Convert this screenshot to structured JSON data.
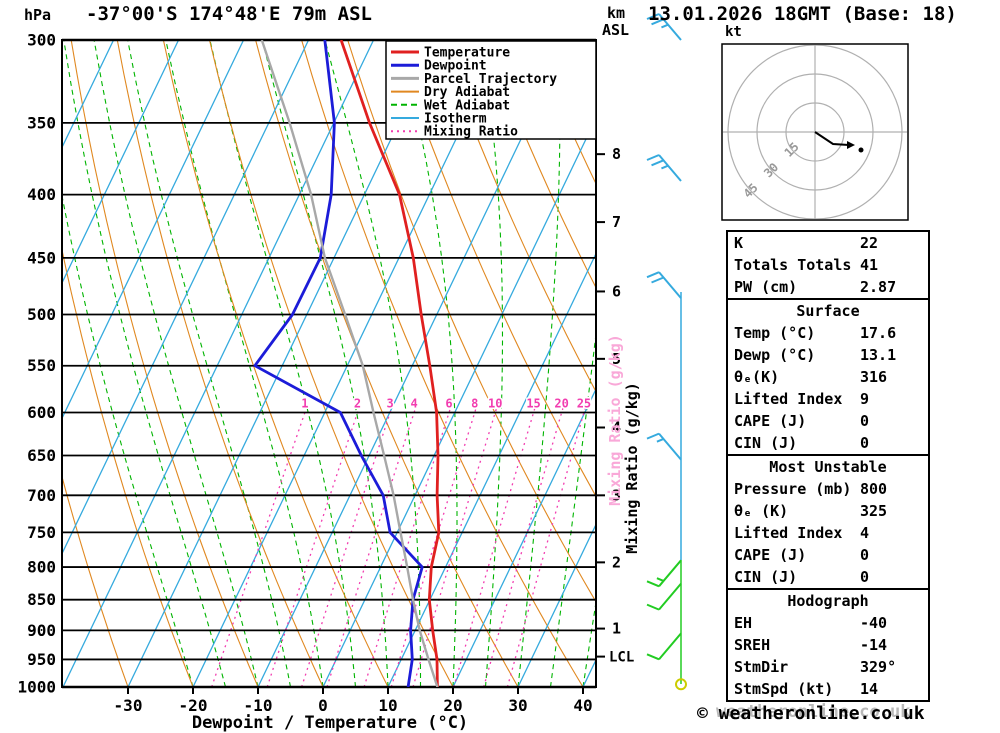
{
  "header": {
    "pressure_unit": "hPa",
    "station_title": "-37°00'S 174°48'E 79m ASL",
    "datetime_title": "13.01.2026 18GMT (Base: 18)",
    "altitude_axis_line1": "km",
    "altitude_axis_line2": "ASL"
  },
  "labels": {
    "x_axis": "Dewpoint / Temperature (°C)",
    "mixing_ratio_axis": "Mixing Ratio (g/kg)",
    "lcl": "LCL"
  },
  "legend": [
    {
      "name": "Temperature",
      "color": "#e02020",
      "dash": "solid",
      "width": 2.8
    },
    {
      "name": "Dewpoint",
      "color": "#1c1cd8",
      "dash": "solid",
      "width": 2.8
    },
    {
      "name": "Parcel Trajectory",
      "color": "#a8a8a8",
      "dash": "solid",
      "width": 2.4
    },
    {
      "name": "Dry Adiabat",
      "color": "#e08820",
      "dash": "solid",
      "width": 1.2
    },
    {
      "name": "Wet Adiabat",
      "color": "#00b400",
      "dash": "dashed",
      "width": 1.2
    },
    {
      "name": "Isotherm",
      "color": "#35aade",
      "dash": "solid",
      "width": 1.2
    },
    {
      "name": "Mixing Ratio",
      "color": "#f23db0",
      "dash": "dotted",
      "width": 1.4
    }
  ],
  "chart_data": {
    "type": "line",
    "title": "Skew-T log-P sounding 13.01.2026 18GMT (Base: 18)",
    "xlabel": "Dewpoint / Temperature (°C)",
    "ylabel": "hPa",
    "x_ticks_c": [
      -30,
      -20,
      -10,
      0,
      10,
      20,
      30,
      40
    ],
    "pressure_levels_hpa": [
      300,
      350,
      400,
      450,
      500,
      550,
      600,
      650,
      700,
      750,
      800,
      850,
      900,
      950,
      1000
    ],
    "pressure_range_hpa": [
      300,
      1000
    ],
    "km_ticks": [
      {
        "km": 8,
        "hpa": 371
      },
      {
        "km": 7,
        "hpa": 421
      },
      {
        "km": 6,
        "hpa": 479
      },
      {
        "km": 5,
        "hpa": 543
      },
      {
        "km": 4,
        "hpa": 617
      },
      {
        "km": 3,
        "hpa": 700
      },
      {
        "km": 2,
        "hpa": 793
      },
      {
        "km": 1,
        "hpa": 897
      }
    ],
    "lcl_hpa": 945,
    "mixing_ratio_lines_gkg": [
      1,
      2,
      3,
      4,
      6,
      8,
      10,
      15,
      20,
      25
    ],
    "isotherms_c": {
      "min": -120,
      "max": 40,
      "step": 10
    },
    "dry_adiabats_theta_c": {
      "min": -30,
      "max": 210,
      "step": 10
    },
    "wet_adiabats_t0_c": {
      "min": -20,
      "max": 40,
      "step": 5
    },
    "series": [
      {
        "name": "Temperature",
        "color": "#e02020",
        "width": 2.8,
        "points_p_t": [
          [
            300,
            -45.0
          ],
          [
            350,
            -34.5
          ],
          [
            400,
            -24.6
          ],
          [
            450,
            -17.8
          ],
          [
            500,
            -12.4
          ],
          [
            550,
            -7.3
          ],
          [
            600,
            -2.8
          ],
          [
            650,
            0.6
          ],
          [
            700,
            3.4
          ],
          [
            750,
            6.4
          ],
          [
            800,
            7.8
          ],
          [
            850,
            9.9
          ],
          [
            900,
            12.7
          ],
          [
            950,
            15.5
          ],
          [
            1000,
            17.6
          ]
        ]
      },
      {
        "name": "Dewpoint",
        "color": "#1c1cd8",
        "width": 2.8,
        "points_p_t": [
          [
            300,
            -47.5
          ],
          [
            350,
            -39.9
          ],
          [
            400,
            -35.1
          ],
          [
            450,
            -32.1
          ],
          [
            500,
            -32.2
          ],
          [
            550,
            -34.2
          ],
          [
            600,
            -17.6
          ],
          [
            650,
            -11.2
          ],
          [
            700,
            -4.9
          ],
          [
            750,
            -1.1
          ],
          [
            800,
            6.4
          ],
          [
            850,
            7.4
          ],
          [
            900,
            9.3
          ],
          [
            950,
            11.7
          ],
          [
            1000,
            13.1
          ]
        ]
      },
      {
        "name": "Parcel Trajectory",
        "color": "#a8a8a8",
        "width": 2.4,
        "points_p_t": [
          [
            300,
            -57.2
          ],
          [
            350,
            -46.8
          ],
          [
            400,
            -38.2
          ],
          [
            450,
            -31.4
          ],
          [
            500,
            -24.1
          ],
          [
            550,
            -17.6
          ],
          [
            600,
            -12.5
          ],
          [
            650,
            -7.7
          ],
          [
            700,
            -3.3
          ],
          [
            750,
            0.5
          ],
          [
            800,
            4.1
          ],
          [
            850,
            7.4
          ],
          [
            900,
            10.7
          ],
          [
            950,
            14.2
          ],
          [
            1000,
            17.6
          ]
        ]
      }
    ],
    "legend_position": "top-right"
  },
  "wind_barbs": {
    "staff_color_upper": "#35aade",
    "staff_color_lower": "#22cc22",
    "barbs": [
      {
        "hpa": 300,
        "full": 2,
        "half": 1,
        "color": "#35aade",
        "orient": "up"
      },
      {
        "hpa": 390,
        "full": 2,
        "half": 1,
        "color": "#35aade",
        "orient": "up"
      },
      {
        "hpa": 485,
        "full": 2,
        "half": 0,
        "color": "#35aade",
        "orient": "up"
      },
      {
        "hpa": 655,
        "full": 1,
        "half": 1,
        "color": "#35aade",
        "orient": "up"
      },
      {
        "hpa": 790,
        "full": 1,
        "half": 1,
        "color": "#22cc22",
        "orient": "down"
      },
      {
        "hpa": 825,
        "full": 1,
        "half": 0,
        "color": "#22cc22",
        "orient": "down"
      },
      {
        "hpa": 905,
        "full": 1,
        "half": 0,
        "color": "#22cc22",
        "orient": "down"
      }
    ],
    "calm_hpa": 995,
    "calm_color": "#cccc00"
  },
  "hodograph": {
    "unit": "kt",
    "rings_kt": [
      15,
      30,
      45
    ],
    "trace_pts": [
      [
        0,
        0
      ],
      [
        18,
        12
      ],
      [
        34,
        13
      ]
    ],
    "dot_pt": [
      46,
      18
    ]
  },
  "table": {
    "sections": [
      {
        "header": null,
        "rows": [
          [
            "K",
            "22"
          ],
          [
            "Totals Totals",
            "41"
          ],
          [
            "PW (cm)",
            "2.87"
          ]
        ]
      },
      {
        "header": "Surface",
        "rows": [
          [
            "Temp (°C)",
            "17.6"
          ],
          [
            "Dewp (°C)",
            "13.1"
          ],
          [
            "θₑ(K)",
            "316"
          ],
          [
            "Lifted Index",
            "9"
          ],
          [
            "CAPE (J)",
            "0"
          ],
          [
            "CIN (J)",
            "0"
          ]
        ]
      },
      {
        "header": "Most Unstable",
        "rows": [
          [
            "Pressure (mb)",
            "800"
          ],
          [
            "θₑ (K)",
            "325"
          ],
          [
            "Lifted Index",
            "4"
          ],
          [
            "CAPE (J)",
            "0"
          ],
          [
            "CIN (J)",
            "0"
          ]
        ]
      },
      {
        "header": "Hodograph",
        "rows": [
          [
            "EH",
            "-40"
          ],
          [
            "SREH",
            "-14"
          ],
          [
            "StmDir",
            "329°"
          ],
          [
            "StmSpd (kt)",
            "14"
          ]
        ]
      }
    ]
  },
  "footer": {
    "copyright": "© weatheronline.co.uk",
    "watermark": "weatheronline.co.uk"
  }
}
